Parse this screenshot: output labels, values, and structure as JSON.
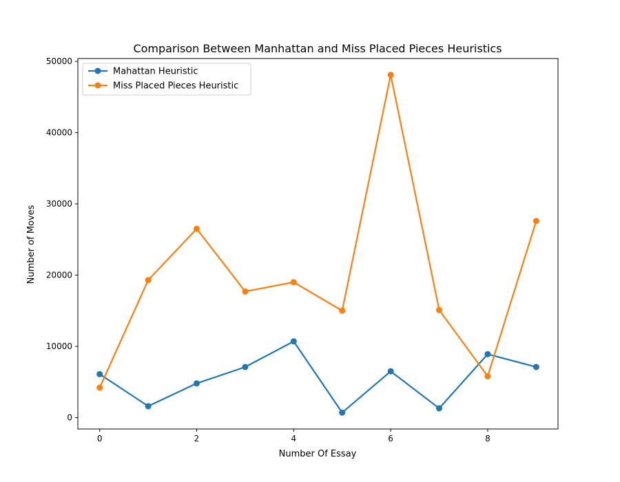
{
  "chart_data": {
    "type": "line",
    "title": "Comparison Between Manhattan and Miss Placed Pieces Heuristics",
    "xlabel": "Number Of Essay",
    "ylabel": "Number of Moves",
    "x": [
      0,
      1,
      2,
      3,
      4,
      5,
      6,
      7,
      8,
      9
    ],
    "xlim": [
      -0.45,
      9.45
    ],
    "ylim": [
      -1600,
      50400
    ],
    "xticks": [
      0,
      2,
      4,
      6,
      8
    ],
    "yticks": [
      0,
      10000,
      20000,
      30000,
      40000,
      50000
    ],
    "grid": false,
    "legend_position": "top-left",
    "series": [
      {
        "name": "Mahattan Heuristic",
        "color": "#1f77b4",
        "values": [
          6100,
          1600,
          4800,
          7100,
          10700,
          700,
          6500,
          1300,
          8900,
          7100
        ]
      },
      {
        "name": "Miss Placed Pieces Heuristic",
        "color": "#ff7f0e",
        "values": [
          4200,
          19300,
          26500,
          17700,
          19000,
          15000,
          48100,
          15100,
          5800,
          27600
        ]
      }
    ]
  }
}
